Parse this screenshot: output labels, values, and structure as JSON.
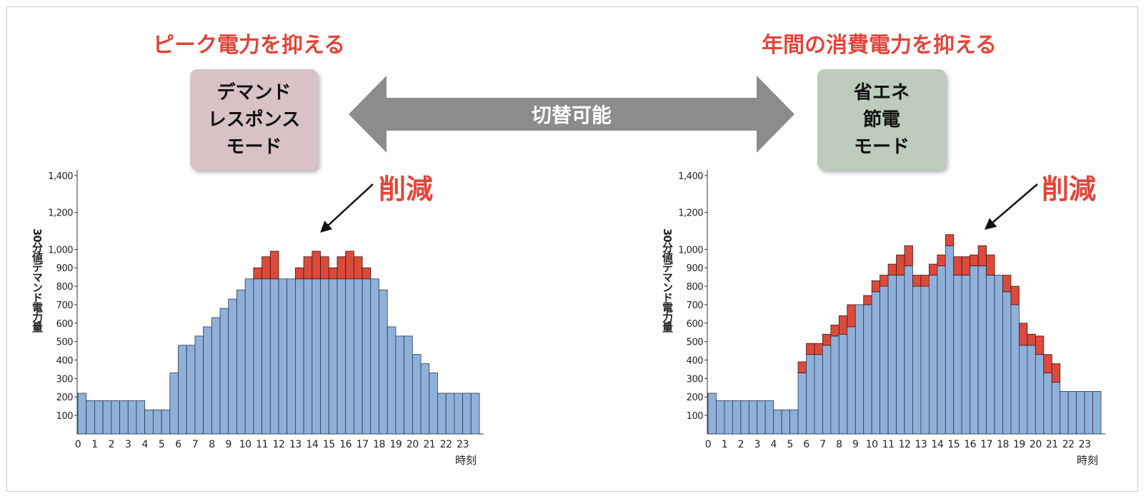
{
  "headings": {
    "left": "ピーク電力を抑える",
    "right": "年間の消費電力を抑える"
  },
  "mode_left": {
    "lines": [
      "デマンド",
      "レスポンス",
      "モード"
    ]
  },
  "mode_right": {
    "lines": [
      "省エネ",
      "節電",
      "モード"
    ]
  },
  "arrow_label": "切替可能",
  "reduction_label": "削減",
  "colors": {
    "heading": "#e2453a",
    "bar_base": "#8fb0d8",
    "bar_reduced": "#dc4a3c",
    "mode_left_bg": "#d9c2c5",
    "mode_right_bg": "#bccbbb",
    "arrow": "#8c8c8c"
  },
  "chart_data": [
    {
      "type": "bar",
      "stacked": true,
      "ylabel": "30分値デマンド電力量",
      "xlabel": "時刻",
      "ylim": [
        0,
        1400
      ],
      "yticks": [
        "100",
        "200",
        "300",
        "400",
        "500",
        "600",
        "700",
        "800",
        "900",
        "1,000",
        "1,200",
        "1,400"
      ],
      "x_tick_labels": [
        "0",
        "1",
        "2",
        "3",
        "4",
        "5",
        "6",
        "7",
        "8",
        "9",
        "10",
        "11",
        "12",
        "13",
        "14",
        "15",
        "16",
        "17",
        "18",
        "19",
        "20",
        "21",
        "22",
        "23"
      ],
      "series": [
        {
          "values": [
            220,
            180,
            180,
            180,
            180,
            180,
            180,
            180,
            130,
            130,
            130,
            330,
            480,
            480,
            530,
            580,
            630,
            680,
            730,
            780,
            840,
            840,
            840,
            840,
            840,
            840,
            840,
            840,
            840,
            840,
            840,
            840,
            840,
            840,
            840,
            840,
            780,
            580,
            530,
            530,
            430,
            380,
            330,
            220,
            220,
            220,
            220,
            220
          ]
        },
        {
          "values": [
            0,
            0,
            0,
            0,
            0,
            0,
            0,
            0,
            0,
            0,
            0,
            0,
            0,
            0,
            0,
            0,
            0,
            0,
            0,
            0,
            0,
            60,
            120,
            150,
            0,
            0,
            60,
            120,
            150,
            120,
            60,
            120,
            150,
            120,
            60,
            0,
            0,
            0,
            0,
            0,
            0,
            0,
            0,
            0,
            0,
            0,
            0,
            0
          ]
        }
      ]
    },
    {
      "type": "bar",
      "stacked": true,
      "ylabel": "30分値デマンド電力量",
      "xlabel": "時刻",
      "ylim": [
        0,
        1400
      ],
      "yticks": [
        "100",
        "200",
        "300",
        "400",
        "500",
        "600",
        "700",
        "800",
        "900",
        "1,000",
        "1,200",
        "1,400"
      ],
      "x_tick_labels": [
        "0",
        "1",
        "2",
        "3",
        "4",
        "5",
        "6",
        "7",
        "8",
        "9",
        "10",
        "11",
        "12",
        "13",
        "14",
        "15",
        "16",
        "17",
        "18",
        "19",
        "20",
        "21",
        "22",
        "23"
      ],
      "series": [
        {
          "values": [
            220,
            180,
            180,
            180,
            180,
            180,
            180,
            180,
            130,
            130,
            130,
            330,
            430,
            430,
            480,
            530,
            540,
            580,
            700,
            700,
            770,
            800,
            860,
            860,
            910,
            800,
            800,
            860,
            910,
            1020,
            860,
            860,
            910,
            910,
            860,
            860,
            770,
            700,
            480,
            480,
            430,
            330,
            280,
            230,
            230,
            230,
            230,
            230
          ]
        },
        {
          "values": [
            0,
            0,
            0,
            0,
            0,
            0,
            0,
            0,
            0,
            0,
            0,
            60,
            60,
            60,
            60,
            60,
            100,
            120,
            0,
            50,
            60,
            60,
            60,
            110,
            110,
            60,
            60,
            60,
            60,
            60,
            100,
            100,
            60,
            110,
            110,
            0,
            90,
            100,
            120,
            60,
            100,
            100,
            100,
            0,
            0,
            0,
            0,
            0
          ]
        }
      ]
    }
  ]
}
